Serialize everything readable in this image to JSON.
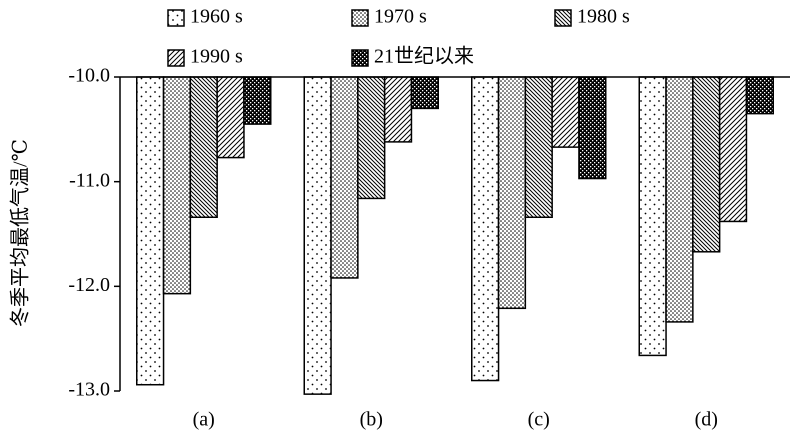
{
  "chart_data": {
    "type": "bar",
    "y_label": "冬季平均最低气温/℃",
    "categories": [
      "(a)",
      "(b)",
      "(c)",
      "(d)"
    ],
    "series": [
      {
        "name": "1960 s",
        "color": "#000000",
        "pattern": "sparse-dots",
        "values": [
          -12.94,
          -13.03,
          -12.9,
          -12.66
        ]
      },
      {
        "name": "1970 s",
        "color": "#000000",
        "pattern": "dense-dots",
        "values": [
          -12.07,
          -11.92,
          -12.21,
          -12.34
        ]
      },
      {
        "name": "1980 s",
        "color": "#000000",
        "pattern": "back-hatch",
        "values": [
          -11.34,
          -11.16,
          -11.34,
          -11.67
        ]
      },
      {
        "name": "1990 s",
        "color": "#000000",
        "pattern": "fwd-hatch",
        "values": [
          -10.77,
          -10.62,
          -10.67,
          -11.38
        ]
      },
      {
        "name": "21世纪以来",
        "color": "#000000",
        "pattern": "checker",
        "values": [
          -10.45,
          -10.3,
          -10.97,
          -10.35
        ]
      }
    ],
    "ylim": [
      -13,
      -10
    ],
    "yticks": [
      {
        "value": -13,
        "label": "-13.0"
      },
      {
        "value": -12,
        "label": "-12.0"
      },
      {
        "value": -11,
        "label": "-11.0"
      },
      {
        "value": -10,
        "label": "-10.0"
      }
    ],
    "grid": false
  }
}
